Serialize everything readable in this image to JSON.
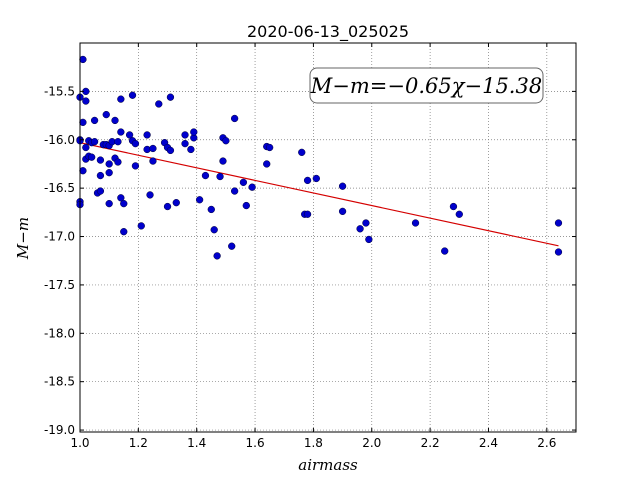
{
  "chart_data": {
    "type": "scatter",
    "title": "2020-06-13_025025",
    "xlabel": "airmass",
    "ylabel": "M−m",
    "xlim": [
      1.0,
      2.7
    ],
    "ylim": [
      -19.02,
      -15.0
    ],
    "y_inverted": true,
    "grid": true,
    "xticks": [
      "1.0",
      "1.2",
      "1.4",
      "1.6",
      "1.8",
      "2.0",
      "2.2",
      "2.4",
      "2.6"
    ],
    "xtick_values": [
      1.0,
      1.2,
      1.4,
      1.6,
      1.8,
      2.0,
      2.2,
      2.4,
      2.6
    ],
    "yticks": [
      "-15.5",
      "-16.0",
      "-16.5",
      "-17.0",
      "-17.5",
      "-18.0",
      "-18.5",
      "-19.0"
    ],
    "ytick_values": [
      -15.5,
      -16.0,
      -16.5,
      -17.0,
      -17.5,
      -18.0,
      -18.5,
      -19.0
    ],
    "annotation": "M−m=−0.65χ−15.38",
    "fit": {
      "slope": -0.65,
      "intercept": -15.38,
      "x_range": [
        1.0,
        2.64
      ],
      "color": "#d40000"
    },
    "marker_color": "#0000cc",
    "points": [
      [
        1.0,
        -15.56
      ],
      [
        1.0,
        -16.0
      ],
      [
        1.0,
        -16.01
      ],
      [
        1.0,
        -16.64
      ],
      [
        1.0,
        -16.67
      ],
      [
        1.01,
        -15.17
      ],
      [
        1.01,
        -15.82
      ],
      [
        1.01,
        -16.32
      ],
      [
        1.02,
        -15.5
      ],
      [
        1.02,
        -15.6
      ],
      [
        1.02,
        -16.08
      ],
      [
        1.02,
        -16.2
      ],
      [
        1.03,
        -16.01
      ],
      [
        1.03,
        -16.17
      ],
      [
        1.04,
        -16.03
      ],
      [
        1.04,
        -16.18
      ],
      [
        1.05,
        -15.8
      ],
      [
        1.05,
        -16.02
      ],
      [
        1.06,
        -16.55
      ],
      [
        1.07,
        -16.37
      ],
      [
        1.07,
        -16.53
      ],
      [
        1.07,
        -16.21
      ],
      [
        1.08,
        -16.05
      ],
      [
        1.09,
        -15.74
      ],
      [
        1.09,
        -16.05
      ],
      [
        1.1,
        -16.06
      ],
      [
        1.1,
        -16.34
      ],
      [
        1.1,
        -16.66
      ],
      [
        1.1,
        -16.25
      ],
      [
        1.11,
        -16.02
      ],
      [
        1.12,
        -15.8
      ],
      [
        1.12,
        -16.19
      ],
      [
        1.13,
        -16.02
      ],
      [
        1.13,
        -16.23
      ],
      [
        1.14,
        -15.58
      ],
      [
        1.14,
        -15.92
      ],
      [
        1.14,
        -16.6
      ],
      [
        1.15,
        -16.66
      ],
      [
        1.15,
        -16.95
      ],
      [
        1.17,
        -15.95
      ],
      [
        1.18,
        -15.54
      ],
      [
        1.18,
        -16.01
      ],
      [
        1.19,
        -16.04
      ],
      [
        1.19,
        -16.27
      ],
      [
        1.21,
        -16.89
      ],
      [
        1.23,
        -15.95
      ],
      [
        1.23,
        -16.1
      ],
      [
        1.24,
        -16.57
      ],
      [
        1.25,
        -16.09
      ],
      [
        1.25,
        -16.22
      ],
      [
        1.27,
        -15.63
      ],
      [
        1.29,
        -16.03
      ],
      [
        1.3,
        -16.08
      ],
      [
        1.3,
        -16.69
      ],
      [
        1.31,
        -15.56
      ],
      [
        1.31,
        -16.11
      ],
      [
        1.33,
        -16.65
      ],
      [
        1.36,
        -15.95
      ],
      [
        1.36,
        -16.04
      ],
      [
        1.38,
        -16.1
      ],
      [
        1.39,
        -15.98
      ],
      [
        1.39,
        -15.92
      ],
      [
        1.41,
        -16.62
      ],
      [
        1.43,
        -16.37
      ],
      [
        1.45,
        -16.72
      ],
      [
        1.46,
        -16.93
      ],
      [
        1.47,
        -17.2
      ],
      [
        1.48,
        -16.38
      ],
      [
        1.49,
        -15.98
      ],
      [
        1.49,
        -16.22
      ],
      [
        1.5,
        -16.01
      ],
      [
        1.52,
        -17.1
      ],
      [
        1.53,
        -15.78
      ],
      [
        1.53,
        -16.53
      ],
      [
        1.56,
        -16.44
      ],
      [
        1.57,
        -16.68
      ],
      [
        1.59,
        -16.49
      ],
      [
        1.64,
        -16.25
      ],
      [
        1.64,
        -16.07
      ],
      [
        1.65,
        -16.08
      ],
      [
        1.76,
        -16.13
      ],
      [
        1.77,
        -16.77
      ],
      [
        1.78,
        -16.77
      ],
      [
        1.78,
        -16.42
      ],
      [
        1.81,
        -16.4
      ],
      [
        1.9,
        -16.48
      ],
      [
        1.9,
        -16.74
      ],
      [
        1.96,
        -16.92
      ],
      [
        1.98,
        -16.86
      ],
      [
        1.99,
        -17.03
      ],
      [
        2.15,
        -16.86
      ],
      [
        2.25,
        -17.15
      ],
      [
        2.28,
        -16.69
      ],
      [
        2.3,
        -16.77
      ],
      [
        2.64,
        -16.86
      ],
      [
        2.64,
        -17.16
      ]
    ]
  }
}
